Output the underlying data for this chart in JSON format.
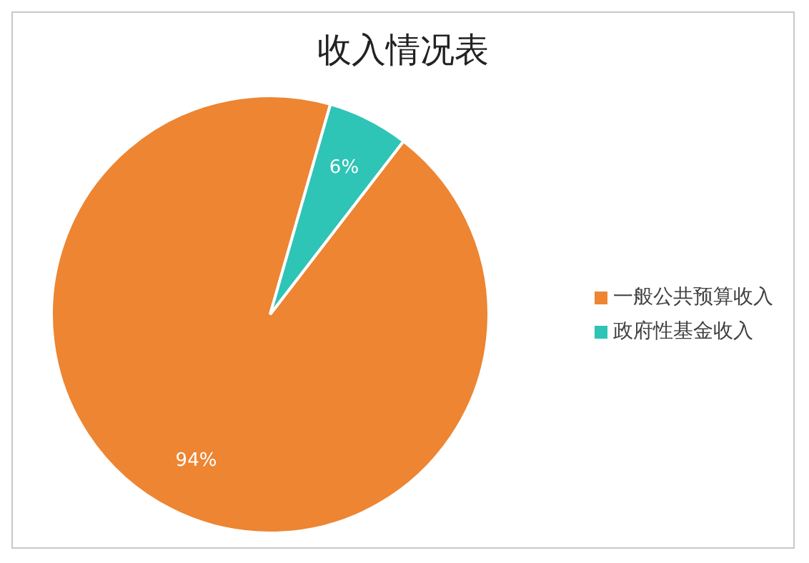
{
  "chart_data": {
    "type": "pie",
    "title": "收入情况表",
    "categories": [
      "一般公共预算收入",
      "政府性基金收入"
    ],
    "values": [
      94,
      6
    ],
    "colors": [
      "#ed8532",
      "#2ec4b6"
    ],
    "value_labels": [
      "94%",
      "6%"
    ],
    "legend": "right"
  }
}
